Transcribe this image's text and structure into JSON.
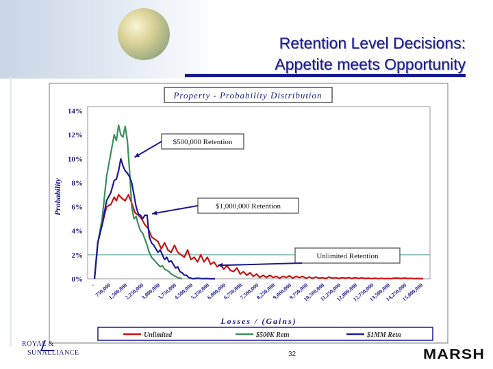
{
  "slide": {
    "title_line1": "Retention Level Decisions:",
    "title_line2": "Appetite meets Opportunity",
    "page_number": "32",
    "footer_logo_left_line1": "ROYAL &",
    "footer_logo_left_line2": "SUNALLIANCE",
    "footer_logo_right": "MARSH"
  },
  "chart_data": {
    "type": "line",
    "title": "Property - Probability Distribution",
    "xlabel": "Losses / (Gains)",
    "ylabel": "Probability",
    "ylim": [
      0,
      0.14
    ],
    "y_ticks": [
      "0%",
      "2%",
      "4%",
      "6%",
      "8%",
      "10%",
      "12%",
      "14%"
    ],
    "x_tick_labels": [
      "-",
      "750,000",
      "1,500,000",
      "2,250,000",
      "3,000,000",
      "3,750,000",
      "4,500,000",
      "5,250,000",
      "6,000,000",
      "6,750,000",
      "7,500,000",
      "8,250,000",
      "9,000,000",
      "9,750,000",
      "10,500,000",
      "11,250,000",
      "12,000,000",
      "12,750,000",
      "13,500,000",
      "14,250,000",
      "15,000,000"
    ],
    "x_max": 15000000,
    "grid": "horizontal at 2%",
    "legend_position": "bottom",
    "series": [
      {
        "name": "Unlimited",
        "color": "#cc1111",
        "points": [
          [
            0,
            0
          ],
          [
            150000,
            0.03
          ],
          [
            350000,
            0.045
          ],
          [
            550000,
            0.06
          ],
          [
            750000,
            0.062
          ],
          [
            900000,
            0.068
          ],
          [
            1000000,
            0.065
          ],
          [
            1100000,
            0.07
          ],
          [
            1250000,
            0.067
          ],
          [
            1400000,
            0.065
          ],
          [
            1550000,
            0.07
          ],
          [
            1700000,
            0.063
          ],
          [
            1850000,
            0.055
          ],
          [
            2000000,
            0.053
          ],
          [
            2150000,
            0.05
          ],
          [
            2300000,
            0.045
          ],
          [
            2450000,
            0.042
          ],
          [
            2600000,
            0.035
          ],
          [
            2750000,
            0.033
          ],
          [
            2900000,
            0.031
          ],
          [
            3050000,
            0.025
          ],
          [
            3200000,
            0.03
          ],
          [
            3350000,
            0.024
          ],
          [
            3500000,
            0.022
          ],
          [
            3650000,
            0.028
          ],
          [
            3800000,
            0.022
          ],
          [
            3950000,
            0.02
          ],
          [
            4100000,
            0.018
          ],
          [
            4250000,
            0.024
          ],
          [
            4400000,
            0.016
          ],
          [
            4550000,
            0.018
          ],
          [
            4700000,
            0.014
          ],
          [
            4850000,
            0.02
          ],
          [
            5000000,
            0.014
          ],
          [
            5150000,
            0.018
          ],
          [
            5300000,
            0.012
          ],
          [
            5450000,
            0.014
          ],
          [
            5600000,
            0.01
          ],
          [
            5750000,
            0.012
          ],
          [
            5900000,
            0.008
          ],
          [
            6050000,
            0.011
          ],
          [
            6200000,
            0.007
          ],
          [
            6350000,
            0.006
          ],
          [
            6500000,
            0.009
          ],
          [
            6650000,
            0.004
          ],
          [
            6800000,
            0.006
          ],
          [
            6950000,
            0.003
          ],
          [
            7100000,
            0.005
          ],
          [
            7250000,
            0.002
          ],
          [
            7400000,
            0.004
          ],
          [
            7550000,
            0.001
          ],
          [
            7700000,
            0.003
          ],
          [
            7850000,
            0.001
          ],
          [
            8000000,
            0.003
          ],
          [
            8150000,
            0.001
          ],
          [
            8300000,
            0.002
          ],
          [
            8450000,
            0.0005
          ],
          [
            8600000,
            0.002
          ],
          [
            8750000,
            0.001
          ],
          [
            8900000,
            0.0025
          ],
          [
            9050000,
            0.0005
          ],
          [
            9200000,
            0.002
          ],
          [
            9350000,
            0.001
          ],
          [
            9500000,
            0.002
          ],
          [
            9650000,
            0.0005
          ],
          [
            9800000,
            0.0015
          ],
          [
            9950000,
            0.0005
          ],
          [
            10100000,
            0.0015
          ],
          [
            10250000,
            0.0005
          ],
          [
            10400000,
            0.001
          ],
          [
            10550000,
            0.0002
          ],
          [
            10700000,
            0.0015
          ],
          [
            10850000,
            0.0005
          ],
          [
            11000000,
            0.001
          ],
          [
            11150000,
            0.0002
          ],
          [
            11300000,
            0.001
          ],
          [
            11450000,
            0.0005
          ],
          [
            11600000,
            0.001
          ],
          [
            11750000,
            0.0002
          ],
          [
            11900000,
            0.001
          ],
          [
            12050000,
            0.0002
          ],
          [
            12200000,
            0.0008
          ],
          [
            12350000,
            0.0002
          ],
          [
            12500000,
            0.0005
          ],
          [
            12650000,
            0.0001
          ],
          [
            12800000,
            0.0005
          ],
          [
            12950000,
            0.0001
          ],
          [
            13100000,
            0.0004
          ],
          [
            13250000,
            0.0001
          ],
          [
            13400000,
            0.0003
          ],
          [
            13550000,
            0.0001
          ],
          [
            13700000,
            0.0006
          ],
          [
            13850000,
            0.0005
          ],
          [
            14000000,
            0.0002
          ],
          [
            14150000,
            0.0006
          ],
          [
            14300000,
            0.0002
          ],
          [
            14450000,
            0.0004
          ],
          [
            14600000,
            0.0001
          ],
          [
            14750000,
            0.0003
          ],
          [
            14900000,
            0.0001
          ],
          [
            15000000,
            0.0002
          ]
        ]
      },
      {
        "name": "$500K Retn",
        "color": "#3a8f5a",
        "points": [
          [
            0,
            0
          ],
          [
            150000,
            0.03
          ],
          [
            350000,
            0.05
          ],
          [
            550000,
            0.085
          ],
          [
            750000,
            0.105
          ],
          [
            900000,
            0.12
          ],
          [
            1000000,
            0.115
          ],
          [
            1100000,
            0.128
          ],
          [
            1200000,
            0.12
          ],
          [
            1300000,
            0.118
          ],
          [
            1400000,
            0.127
          ],
          [
            1500000,
            0.115
          ],
          [
            1600000,
            0.09
          ],
          [
            1700000,
            0.06
          ],
          [
            1800000,
            0.05
          ],
          [
            1900000,
            0.052
          ],
          [
            2000000,
            0.045
          ],
          [
            2100000,
            0.04
          ],
          [
            2200000,
            0.038
          ],
          [
            2300000,
            0.033
          ],
          [
            2400000,
            0.028
          ],
          [
            2500000,
            0.022
          ],
          [
            2600000,
            0.018
          ],
          [
            2700000,
            0.016
          ],
          [
            2800000,
            0.014
          ],
          [
            2900000,
            0.012
          ],
          [
            3000000,
            0.01
          ],
          [
            3100000,
            0.011
          ],
          [
            3200000,
            0.008
          ],
          [
            3300000,
            0.007
          ],
          [
            3400000,
            0.006
          ],
          [
            3500000,
            0.004
          ],
          [
            3600000,
            0.003
          ],
          [
            3700000,
            0.002
          ],
          [
            3800000,
            0.001
          ],
          [
            3900000,
            0.0005
          ],
          [
            4000000,
            0
          ]
        ]
      },
      {
        "name": "$1MM Retn",
        "color": "#1a1a9c",
        "points": [
          [
            0,
            0
          ],
          [
            150000,
            0.03
          ],
          [
            350000,
            0.045
          ],
          [
            550000,
            0.065
          ],
          [
            750000,
            0.072
          ],
          [
            900000,
            0.082
          ],
          [
            1000000,
            0.083
          ],
          [
            1100000,
            0.09
          ],
          [
            1200000,
            0.1
          ],
          [
            1300000,
            0.094
          ],
          [
            1400000,
            0.09
          ],
          [
            1500000,
            0.088
          ],
          [
            1600000,
            0.085
          ],
          [
            1700000,
            0.08
          ],
          [
            1800000,
            0.07
          ],
          [
            1900000,
            0.06
          ],
          [
            2000000,
            0.054
          ],
          [
            2100000,
            0.053
          ],
          [
            2200000,
            0.05
          ],
          [
            2300000,
            0.053
          ],
          [
            2400000,
            0.053
          ],
          [
            2500000,
            0.035
          ],
          [
            2600000,
            0.03
          ],
          [
            2700000,
            0.028
          ],
          [
            2800000,
            0.025
          ],
          [
            2900000,
            0.022
          ],
          [
            3000000,
            0.024
          ],
          [
            3100000,
            0.02
          ],
          [
            3200000,
            0.016
          ],
          [
            3300000,
            0.018
          ],
          [
            3400000,
            0.014
          ],
          [
            3500000,
            0.015
          ],
          [
            3600000,
            0.012
          ],
          [
            3700000,
            0.009
          ],
          [
            3800000,
            0.01
          ],
          [
            3900000,
            0.006
          ],
          [
            4000000,
            0.005
          ],
          [
            4100000,
            0.003
          ],
          [
            4200000,
            0.003
          ],
          [
            4300000,
            0.001
          ],
          [
            4400000,
            0.0005
          ],
          [
            4500000,
            0
          ],
          [
            4700000,
            0.0005
          ],
          [
            4900000,
            0.0001
          ],
          [
            5100000,
            0.0002
          ],
          [
            5300000,
            0
          ],
          [
            5500000,
            0
          ]
        ]
      }
    ],
    "annotations": [
      {
        "text": "$500,000 Retention",
        "target": [
          1700000,
          0.1
        ]
      },
      {
        "text": "$1,000,000 Retention",
        "target": [
          2500000,
          0.053
        ]
      },
      {
        "text": "Unlimited Retention",
        "target": [
          5500000,
          0.01
        ]
      }
    ]
  }
}
